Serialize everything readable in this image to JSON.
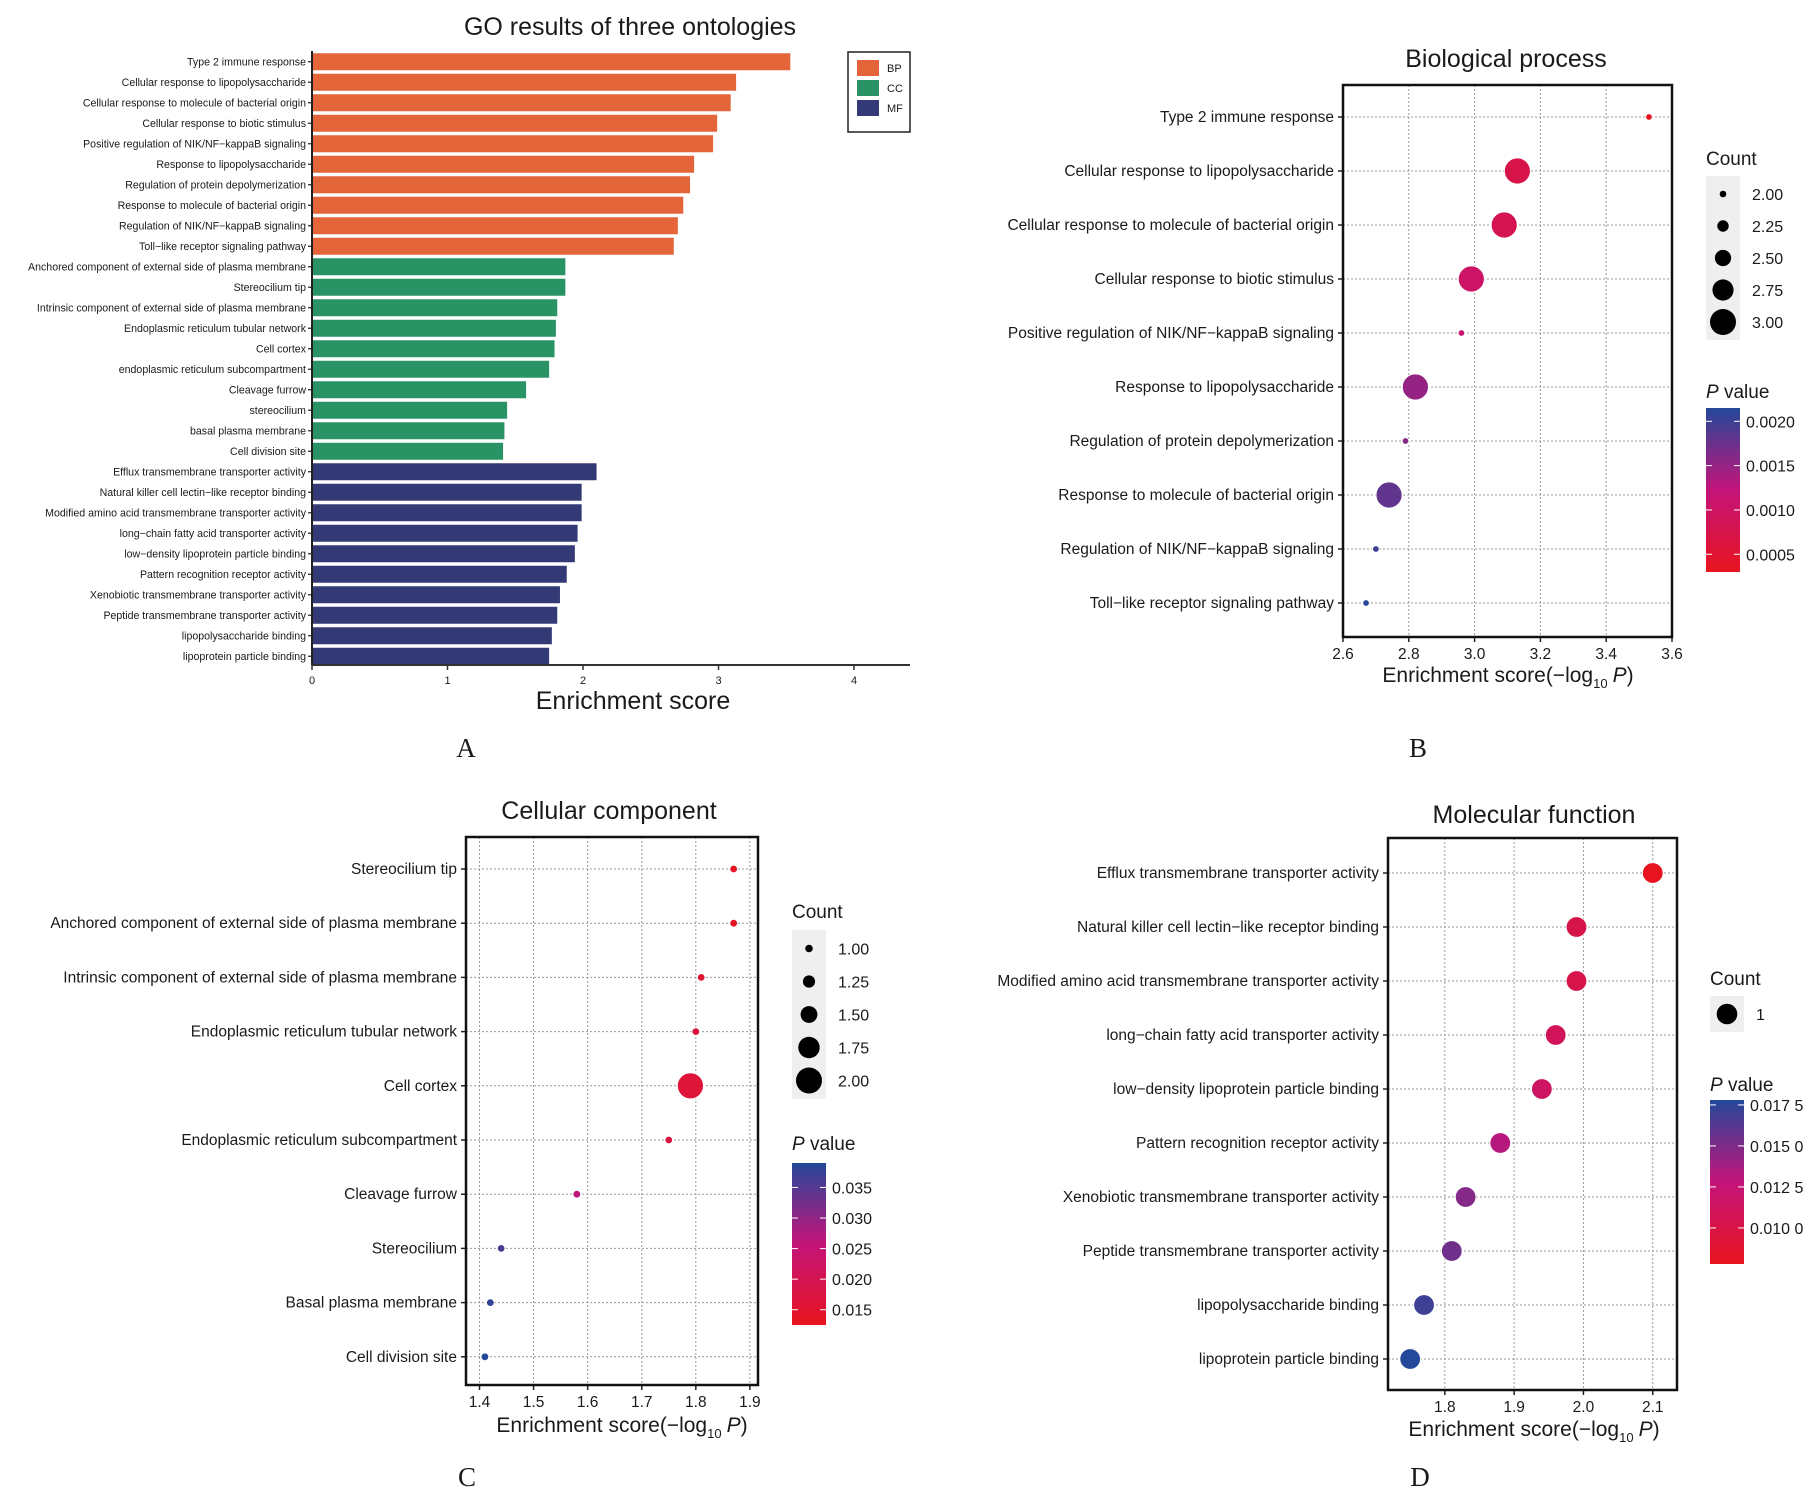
{
  "panel_letters": [
    "A",
    "B",
    "C",
    "D"
  ],
  "colors": {
    "BP": "#E4653A",
    "CC": "#2A9366",
    "MF": "#343A75",
    "p_low": "#E8141E",
    "p_mid": "#C4147A",
    "p_high": "#24489A"
  },
  "chart_data": [
    {
      "id": "A",
      "type": "bar",
      "orientation": "horizontal",
      "title": "GO results of three ontologies",
      "xlabel": "Enrichment score",
      "ylabel": "",
      "xlim": [
        0,
        4.4
      ],
      "xticks": [
        0,
        1,
        2,
        3,
        4
      ],
      "grid": false,
      "legend": {
        "position": "top-right",
        "entries": [
          "BP",
          "CC",
          "MF"
        ]
      },
      "categories": [
        "Type 2 immune response",
        "Cellular response to lipopolysaccharide",
        "Cellular response to molecule of bacterial origin",
        "Cellular response to biotic stimulus",
        "Positive regulation of NIK/NF−kappaB signaling",
        "Response to lipopolysaccharide",
        "Regulation of protein depolymerization",
        "Response to molecule of bacterial origin",
        "Regulation of NIK/NF−kappaB signaling",
        "Toll−like receptor signaling pathway",
        "Anchored component of external side of plasma membrane",
        "Stereocilium tip",
        "Intrinsic component of external side of plasma membrane",
        "Endoplasmic reticulum tubular network",
        "Cell cortex",
        "endoplasmic reticulum subcompartment",
        "Cleavage furrow",
        "stereocilium",
        "basal plasma membrane",
        "Cell division site",
        "Efflux transmembrane transporter activity",
        "Natural killer cell lectin−like receptor binding",
        "Modified amino acid transmembrane transporter activity",
        "long−chain fatty acid transporter activity",
        "low−density lipoprotein particle binding",
        "Pattern recognition receptor activity",
        "Xenobiotic transmembrane transporter activity",
        "Peptide transmembrane transporter activity",
        "lipopolysaccharide binding",
        "lipoprotein particle binding"
      ],
      "groups": [
        "BP",
        "BP",
        "BP",
        "BP",
        "BP",
        "BP",
        "BP",
        "BP",
        "BP",
        "BP",
        "CC",
        "CC",
        "CC",
        "CC",
        "CC",
        "CC",
        "CC",
        "CC",
        "CC",
        "CC",
        "MF",
        "MF",
        "MF",
        "MF",
        "MF",
        "MF",
        "MF",
        "MF",
        "MF",
        "MF"
      ],
      "values": [
        3.53,
        3.13,
        3.09,
        2.99,
        2.96,
        2.82,
        2.79,
        2.74,
        2.7,
        2.67,
        1.87,
        1.87,
        1.81,
        1.8,
        1.79,
        1.75,
        1.58,
        1.44,
        1.42,
        1.41,
        2.1,
        1.99,
        1.99,
        1.96,
        1.94,
        1.88,
        1.83,
        1.81,
        1.77,
        1.75
      ]
    },
    {
      "id": "B",
      "type": "scatter",
      "title": "Biological process",
      "xlabel_main": "Enrichment score",
      "xlabel_paren_open": "(−log",
      "xlabel_sub": "10",
      "xlabel_p": "P",
      "xlabel_paren_close": ")",
      "xlim": [
        2.6,
        3.6
      ],
      "xticks": [
        2.6,
        2.8,
        3.0,
        3.2,
        3.4,
        3.6
      ],
      "xtick_labels": [
        "2.6",
        "2.8",
        "3.0",
        "3.2",
        "3.4",
        "3.6"
      ],
      "grid": true,
      "categories": [
        "Type 2 immune response",
        "Cellular response to lipopolysaccharide",
        "Cellular response to molecule of bacterial origin",
        "Cellular response to biotic stimulus",
        "Positive regulation of NIK/NF−kappaB signaling",
        "Response to lipopolysaccharide",
        "Regulation of protein depolymerization",
        "Response to molecule of bacterial origin",
        "Regulation of NIK/NF−kappaB signaling",
        "Toll−like receptor signaling pathway"
      ],
      "x": [
        3.53,
        3.13,
        3.09,
        2.99,
        2.96,
        2.82,
        2.79,
        2.74,
        2.7,
        2.67
      ],
      "count": [
        2,
        3,
        3,
        3,
        2,
        3,
        2,
        3,
        2,
        2
      ],
      "pvalue": [
        0.0003,
        0.00074,
        0.00081,
        0.00102,
        0.0011,
        0.0015,
        0.0016,
        0.0018,
        0.002,
        0.00214
      ],
      "size_legend": {
        "title": "Count",
        "values": [
          2.0,
          2.25,
          2.5,
          2.75,
          3.0
        ],
        "labels": [
          "2.00",
          "2.25",
          "2.50",
          "2.75",
          "3.00"
        ]
      },
      "color_legend": {
        "title_italic": "P",
        "title_rest": " value",
        "range": [
          0.0003,
          0.00215
        ],
        "ticks": [
          0.002,
          0.0015,
          0.001,
          0.0005
        ],
        "labels": [
          "0.0020",
          "0.0015",
          "0.0010",
          "0.0005"
        ]
      }
    },
    {
      "id": "C",
      "type": "scatter",
      "title": "Cellular component",
      "xlabel_main": "Enrichment score",
      "xlabel_paren_open": "(−log",
      "xlabel_sub": "10",
      "xlabel_p": "P",
      "xlabel_paren_close": ")",
      "xlim": [
        1.375,
        1.915
      ],
      "xticks": [
        1.4,
        1.5,
        1.6,
        1.7,
        1.8,
        1.9
      ],
      "xtick_labels": [
        "1.4",
        "1.5",
        "1.6",
        "1.7",
        "1.8",
        "1.9"
      ],
      "grid": true,
      "categories": [
        "Stereocilium tip",
        "Anchored component of external side of plasma membrane",
        "Intrinsic component of external side of plasma membrane",
        "Endoplasmic reticulum tubular network",
        "Cell cortex",
        "Endoplasmic reticulum subcompartment",
        "Cleavage furrow",
        "Stereocilium",
        "Basal plasma membrane",
        "Cell division site"
      ],
      "x": [
        1.87,
        1.87,
        1.81,
        1.8,
        1.79,
        1.75,
        1.58,
        1.44,
        1.42,
        1.41
      ],
      "count": [
        1,
        1,
        1,
        1,
        2,
        1,
        1,
        1,
        1,
        1
      ],
      "pvalue": [
        0.0135,
        0.0135,
        0.0155,
        0.016,
        0.0163,
        0.0178,
        0.0263,
        0.0363,
        0.038,
        0.0389
      ],
      "size_legend": {
        "title": "Count",
        "values": [
          1.0,
          1.25,
          1.5,
          1.75,
          2.0
        ],
        "labels": [
          "1.00",
          "1.25",
          "1.50",
          "1.75",
          "2.00"
        ]
      },
      "color_legend": {
        "title_italic": "P",
        "title_rest": " value",
        "range": [
          0.0125,
          0.039
        ],
        "ticks": [
          0.035,
          0.03,
          0.025,
          0.02,
          0.015
        ],
        "labels": [
          "0.035",
          "0.030",
          "0.025",
          "0.020",
          "0.015"
        ]
      }
    },
    {
      "id": "D",
      "type": "scatter",
      "title": "Molecular function",
      "xlabel_main": "Enrichment score",
      "xlabel_paren_open": "(−log",
      "xlabel_sub": "10",
      "xlabel_p": "P",
      "xlabel_paren_close": ")",
      "xlim": [
        1.718,
        2.135
      ],
      "xticks": [
        1.8,
        1.9,
        2.0,
        2.1
      ],
      "xtick_labels": [
        "1.8",
        "1.9",
        "2.0",
        "2.1"
      ],
      "grid": true,
      "categories": [
        "Efflux transmembrane transporter activity",
        "Natural killer cell lectin−like receptor binding",
        "Modified amino acid transmembrane transporter activity",
        "long−chain fatty acid transporter activity",
        "low−density lipoprotein particle binding",
        "Pattern recognition receptor activity",
        "Xenobiotic transmembrane transporter activity",
        "Peptide transmembrane transporter activity",
        "lipopolysaccharide binding",
        "lipoprotein particle binding"
      ],
      "x": [
        2.1,
        1.99,
        1.99,
        1.96,
        1.94,
        1.88,
        1.83,
        1.81,
        1.77,
        1.75
      ],
      "count": [
        1,
        1,
        1,
        1,
        1,
        1,
        1,
        1,
        1,
        1
      ],
      "pvalue": [
        0.0079,
        0.0102,
        0.0102,
        0.011,
        0.0115,
        0.0132,
        0.0148,
        0.0155,
        0.017,
        0.0178
      ],
      "size_legend": {
        "title": "Count",
        "values": [
          1
        ],
        "labels": [
          "1"
        ]
      },
      "color_legend": {
        "title_italic": "P",
        "title_rest": " value",
        "range": [
          0.0078,
          0.0178
        ],
        "ticks": [
          0.0175,
          0.015,
          0.0125,
          0.01
        ],
        "labels": [
          "0.017 5",
          "0.015 0",
          "0.012 5",
          "0.010 0"
        ]
      }
    }
  ]
}
